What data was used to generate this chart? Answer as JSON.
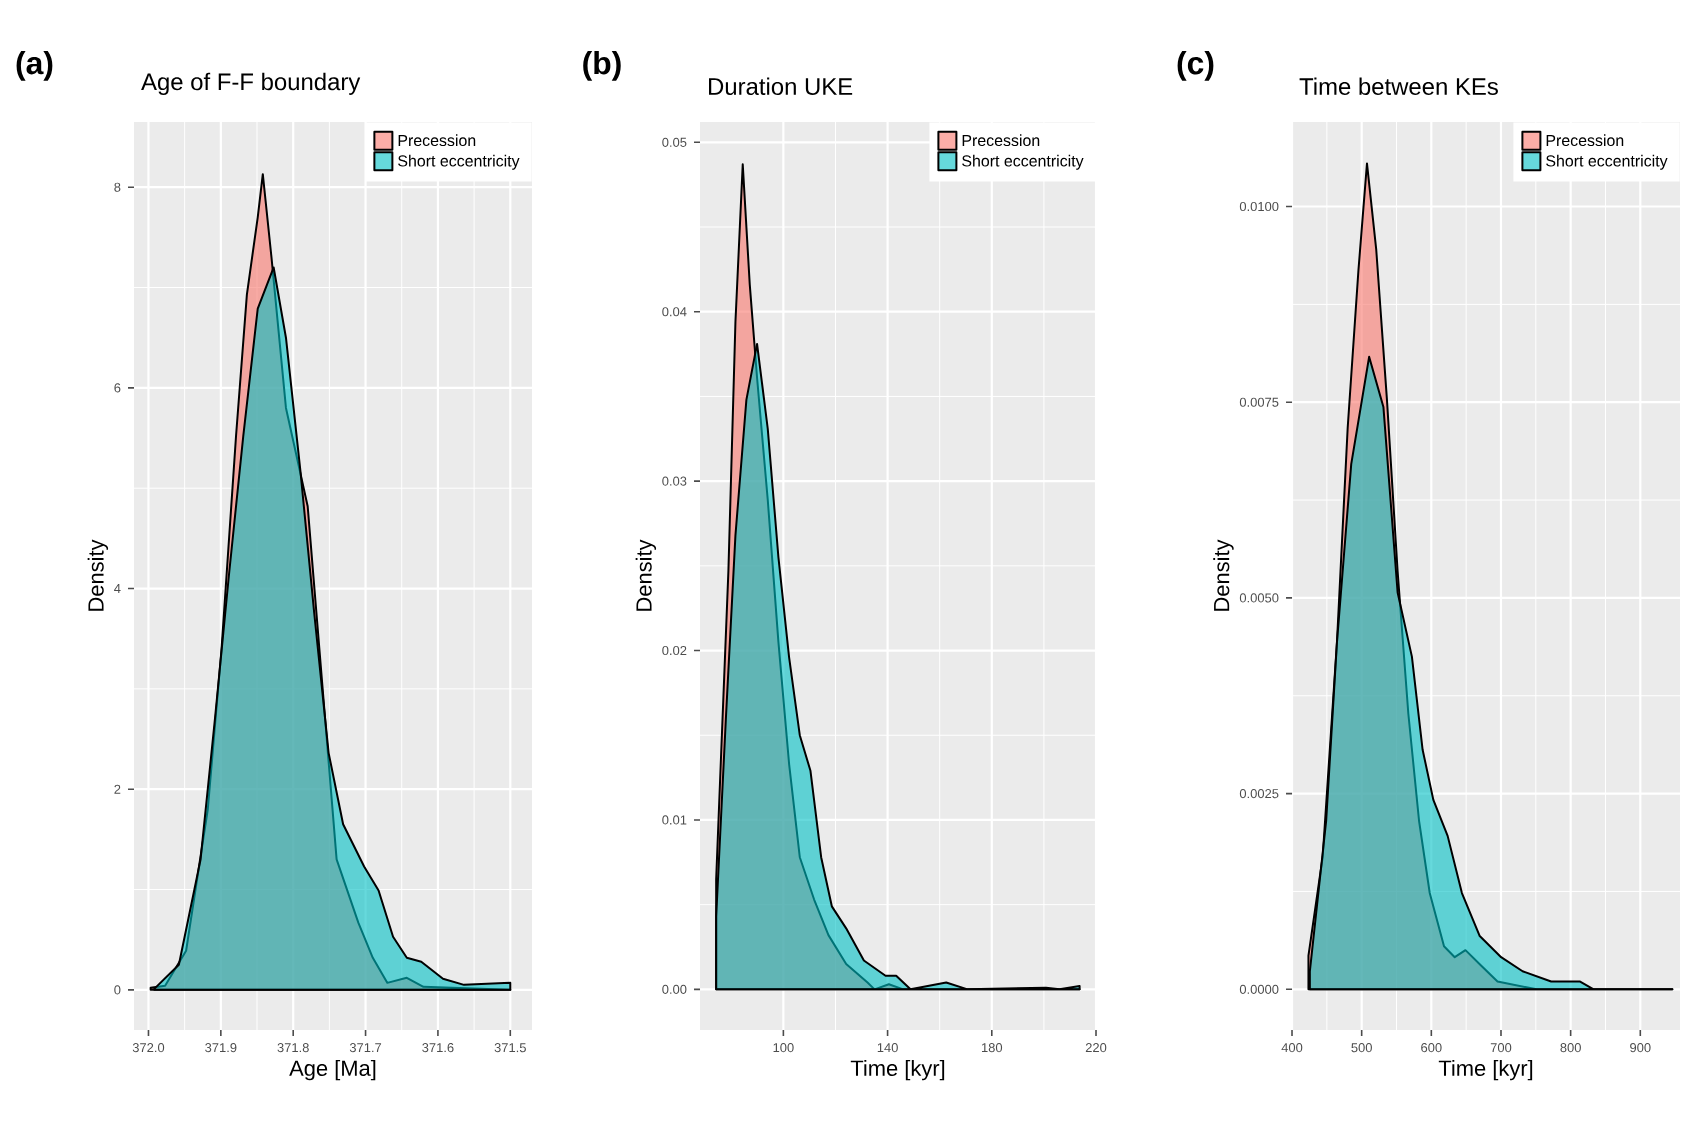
{
  "chart_data": [
    {
      "type": "area",
      "title": "Age of F-F boundary",
      "xlabel": "Age [Ma]",
      "ylabel": "Density",
      "annotations": [
        "(a)"
      ],
      "legend": "top right",
      "grid": true,
      "xlim": [
        372.02,
        371.47
      ],
      "ylim": [
        -0.4,
        8.65
      ],
      "xticks": [
        {
          "value": 372.0,
          "label": "372.0"
        },
        371.9,
        371.8,
        371.7,
        371.6,
        371.5
      ],
      "yticks": [
        0,
        2,
        4,
        6,
        8
      ],
      "series": [
        {
          "name": "Precession",
          "color": "#f8766d",
          "x": [
            371.997,
            371.977,
            371.948,
            371.918,
            371.899,
            371.879,
            371.864,
            371.849,
            371.842,
            371.83,
            371.81,
            371.78,
            371.756,
            371.74,
            371.71,
            371.69,
            371.67,
            371.643,
            371.62,
            371.5
          ],
          "values": [
            0.02,
            0.04,
            0.39,
            1.8,
            3.4,
            5.52,
            6.93,
            7.7,
            8.13,
            7.3,
            5.8,
            4.82,
            2.71,
            1.3,
            0.67,
            0.32,
            0.07,
            0.12,
            0.03,
            0
          ]
        },
        {
          "name": "Short eccentricity",
          "color": "#00bfc4",
          "x": [
            371.992,
            371.958,
            371.928,
            371.908,
            371.889,
            371.869,
            371.849,
            371.827,
            371.81,
            371.79,
            371.771,
            371.751,
            371.731,
            371.702,
            371.682,
            371.662,
            371.643,
            371.623,
            371.593,
            371.564,
            371.5
          ],
          "values": [
            0.01,
            0.25,
            1.3,
            2.71,
            4.12,
            5.52,
            6.79,
            7.2,
            6.5,
            5.17,
            3.76,
            2.36,
            1.65,
            1.23,
            0.99,
            0.53,
            0.32,
            0.28,
            0.11,
            0.05,
            0.07
          ]
        }
      ]
    },
    {
      "type": "area",
      "title": "Duration UKE",
      "xlabel": "Time [kyr]",
      "ylabel": "Density",
      "annotations": [
        "(b)"
      ],
      "legend": "top right",
      "grid": true,
      "xlim": [
        68,
        220
      ],
      "ylim": [
        -0.0024,
        0.0512
      ],
      "xticks": [
        100,
        140,
        180,
        220
      ],
      "yticks": [
        {
          "value": 0,
          "label": "0.00"
        },
        0.01,
        0.02,
        0.03,
        0.04,
        0.05
      ],
      "series": [
        {
          "name": "Precession",
          "color": "#f8766d",
          "x": [
            74.2,
            78.9,
            81.6,
            84.4,
            87.1,
            89.9,
            94,
            98.1,
            102.2,
            106.3,
            111.8,
            117.3,
            124.1,
            132.3,
            135,
            140.5,
            146,
            213.7
          ],
          "values": [
            0.0065,
            0.0247,
            0.0394,
            0.0487,
            0.0416,
            0.0361,
            0.0289,
            0.0205,
            0.0133,
            0.0078,
            0.0053,
            0.0032,
            0.0015,
            0.0004,
            0,
            0.0003,
            0,
            0
          ]
        },
        {
          "name": "Short eccentricity",
          "color": "#00bfc4",
          "x": [
            74.2,
            78,
            81.6,
            85.8,
            89.9,
            94,
            98.1,
            102.2,
            106.3,
            110.4,
            114.5,
            118.6,
            124.1,
            130.9,
            139.2,
            143.3,
            148.8,
            162.5,
            170.7,
            200.8,
            206,
            213.7
          ],
          "values": [
            0.0043,
            0.0162,
            0.0268,
            0.0348,
            0.0381,
            0.0331,
            0.0255,
            0.0196,
            0.015,
            0.0129,
            0.0078,
            0.0049,
            0.0036,
            0.0017,
            0.0008,
            0.0008,
            0,
            0.0004,
            0,
            0.0001,
            0,
            0.0002
          ]
        }
      ]
    },
    {
      "type": "area",
      "title": "Time between KEs",
      "xlabel": "Time [kyr]",
      "ylabel": "Density",
      "annotations": [
        "(c)"
      ],
      "legend": "top right",
      "grid": true,
      "xlim": [
        400,
        957
      ],
      "ylim": [
        -0.00052,
        0.01108
      ],
      "xticks": [
        400,
        500,
        600,
        700,
        800,
        900
      ],
      "yticks": [
        {
          "value": 0,
          "label": "0.0000"
        },
        0.0025,
        {
          "value": 0.005,
          "label": "0.0050"
        },
        0.0075,
        {
          "value": 0.01,
          "label": "0.0100"
        }
      ],
      "series": [
        {
          "name": "Precession",
          "color": "#f8766d",
          "x": [
            423.6,
            444,
            464.5,
            479.9,
            495.3,
            507.6,
            520.9,
            536.3,
            551.6,
            567,
            582.4,
            597.7,
            618.2,
            633.6,
            649,
            669.5,
            695,
            751,
            946
          ],
          "values": [
            0.00043,
            0.00169,
            0.00443,
            0.00717,
            0.00918,
            0.01055,
            0.00945,
            0.00753,
            0.00534,
            0.00352,
            0.00215,
            0.00123,
            0.00055,
            0.00041,
            0.0005,
            0.00032,
            0.0001,
            0,
            0
          ]
        },
        {
          "name": "Short eccentricity",
          "color": "#00bfc4",
          "x": [
            425.6,
            449,
            464.5,
            485,
            510.7,
            531.2,
            551.6,
            572.1,
            587.5,
            602.9,
            623.4,
            643.9,
            669.5,
            700.2,
            731,
            772,
            813,
            833,
            915,
            946
          ],
          "values": [
            0.00023,
            0.00215,
            0.00443,
            0.00671,
            0.00808,
            0.00744,
            0.00507,
            0.00425,
            0.00306,
            0.00242,
            0.00196,
            0.00123,
            0.00068,
            0.00041,
            0.00023,
            0.0001,
            0.0001,
            0,
            0,
            0
          ]
        }
      ]
    }
  ]
}
